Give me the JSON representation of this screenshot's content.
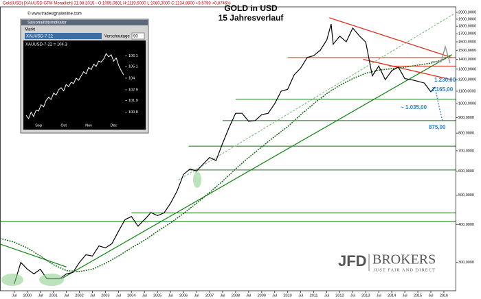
{
  "header": {
    "text": "Gold(USD) [XAUUSD GTM Monatlich] 31.08.2015 - O:1095,0601 H:1119,5000 L:1080,3000 C:1134,8900 +9,5799 +0,8746%",
    "copyright": "© www.tradesignalonline.com"
  },
  "branding": {
    "name": "JFD",
    "name2": "BROKERS",
    "slogan": "JUST FAIR AND DIRECT"
  },
  "inset": {
    "window_title": "Saisonalitätsindikator",
    "market_label": "Markt",
    "market": "XAUUSD-7-22",
    "days_label": "Vorschautage",
    "days": "90",
    "legend": "XAUUSD-7-22 = 104.3"
  },
  "chart_data": [
    {
      "type": "line",
      "title": "GOLD in USD",
      "subtitle": "15 Jahresverlauf",
      "log_scale": true,
      "color": "#000000",
      "x": [
        1999.5,
        1999.75,
        2000,
        2000.25,
        2000.5,
        2000.75,
        2001,
        2001.25,
        2001.5,
        2001.75,
        2002,
        2002.25,
        2002.5,
        2002.75,
        2003,
        2003.25,
        2003.5,
        2003.75,
        2004,
        2004.25,
        2004.5,
        2004.75,
        2005,
        2005.25,
        2005.5,
        2005.75,
        2006,
        2006.25,
        2006.5,
        2006.75,
        2007,
        2007.25,
        2007.5,
        2007.75,
        2008,
        2008.25,
        2008.5,
        2008.75,
        2009,
        2009.25,
        2009.5,
        2009.75,
        2010,
        2010.25,
        2010.5,
        2010.75,
        2011,
        2011.25,
        2011.5,
        2011.67,
        2011.75,
        2012,
        2012.25,
        2012.5,
        2012.75,
        2013,
        2013.25,
        2013.5,
        2013.75,
        2014,
        2014.25,
        2014.5,
        2014.75,
        2015,
        2015.25,
        2015.5,
        2015.67
      ],
      "values": [
        255,
        300,
        285,
        275,
        285,
        265,
        265,
        265,
        275,
        278,
        300,
        318,
        315,
        340,
        335,
        346,
        380,
        415,
        425,
        395,
        415,
        438,
        428,
        437,
        470,
        515,
        585,
        610,
        600,
        632,
        665,
        650,
        740,
        835,
        930,
        930,
        875,
        880,
        920,
        930,
        1000,
        1100,
        1115,
        1245,
        1310,
        1420,
        1440,
        1500,
        1620,
        1830,
        1570,
        1670,
        1600,
        1775,
        1675,
        1595,
        1235,
        1330,
        1200,
        1285,
        1320,
        1210,
        1200,
        1185,
        1170,
        1095,
        1135
      ],
      "moving_average": {
        "color": "#1a6e1a",
        "x": [
          1998.95,
          1999.5,
          2000,
          2000.5,
          2001,
          2001.5,
          2002,
          2002.5,
          2003,
          2003.5,
          2004,
          2004.5,
          2005,
          2005.5,
          2006,
          2006.5,
          2007,
          2007.5,
          2008,
          2008.5,
          2009,
          2009.5,
          2010,
          2010.5,
          2011,
          2011.5,
          2012,
          2012.5,
          2013,
          2013.5,
          2014,
          2014.5,
          2015,
          2015.5,
          2016,
          2016.3
        ],
        "values": [
          360,
          350,
          335,
          315,
          295,
          282,
          280,
          285,
          298,
          315,
          335,
          355,
          380,
          405,
          435,
          470,
          510,
          555,
          610,
          665,
          720,
          780,
          840,
          920,
          1000,
          1080,
          1150,
          1210,
          1260,
          1290,
          1305,
          1320,
          1340,
          1360,
          1400,
          1450
        ]
      },
      "hlines": [
        {
          "value": 1420,
          "x_from": 2010.0,
          "color": "#e03020"
        },
        {
          "value": 1330,
          "x_from": 2013.9,
          "color": "#e03020"
        },
        {
          "value": 1035,
          "x_from": 2008.0,
          "color": "#1a6e1a"
        },
        {
          "value": 880,
          "x_from": 2007.5,
          "color": "#1a6e1a"
        },
        {
          "value": 725,
          "x_from": 2006.2,
          "color": "#1a6e1a"
        },
        {
          "value": 605,
          "x_from": 2006.2,
          "color": "#1a6e1a"
        },
        {
          "value": 437,
          "x_from": 2004.0,
          "color": "#1a6e1a"
        },
        {
          "value": 410,
          "x_from": 1998.95,
          "color": "#1a6e1a"
        }
      ],
      "trendlines": [
        {
          "x": [
            2001.3,
            2016.3
          ],
          "y": [
            265,
            1450
          ],
          "color": "#1a8a1a",
          "dashed": false
        },
        {
          "x": [
            2005.8,
            2016.4
          ],
          "y": [
            560,
            1980
          ],
          "color": "#8cc08c",
          "dashed": true
        },
        {
          "x": [
            2011.6,
            2016.3
          ],
          "y": [
            1920,
            1420
          ],
          "color": "#e03020",
          "dashed": false
        },
        {
          "x": [
            2012.9,
            2016.3
          ],
          "y": [
            1400,
            1200
          ],
          "color": "#e03020",
          "dashed": false
        },
        {
          "x": [
            1998.95,
            2001.5
          ],
          "y": [
            345,
            290
          ],
          "color": "#1a8a1a",
          "dashed": false
        }
      ],
      "forecast": {
        "color": "#2a7fd0",
        "x": [
          2015.67,
          2015.75,
          2015.85,
          2015.95
        ],
        "values": [
          1135,
          1040,
          950,
          875
        ]
      },
      "annotations": [
        "1.230,00",
        "1.165,00",
        "~ 1.035,00",
        "875,00"
      ],
      "xlim": [
        1998.95,
        2016.45
      ],
      "ylim": [
        242,
        2085
      ],
      "xticks": [
        {
          "value": 1999.5,
          "label": "Jul"
        },
        2000,
        {
          "value": 2000.5,
          "label": "Jul"
        },
        2001,
        {
          "value": 2001.5,
          "label": "Jul"
        },
        2002,
        {
          "value": 2002.5,
          "label": "Jul"
        },
        2003,
        {
          "value": 2003.5,
          "label": "Jul"
        },
        2004,
        {
          "value": 2004.5,
          "label": "Jul"
        },
        2005,
        {
          "value": 2005.5,
          "label": "Jul"
        },
        2006,
        {
          "value": 2006.5,
          "label": "Jul"
        },
        2007,
        {
          "value": 2007.5,
          "label": "Jul"
        },
        2008,
        {
          "value": 2008.5,
          "label": "Jul"
        },
        2009,
        {
          "value": 2009.5,
          "label": "Jul"
        },
        2010,
        {
          "value": 2010.5,
          "label": "Jul"
        },
        2011,
        {
          "value": 2011.5,
          "label": "Jul"
        },
        2012,
        {
          "value": 2012.5,
          "label": "Jul"
        },
        2013,
        {
          "value": 2013.5,
          "label": "Jul"
        },
        2014,
        {
          "value": 2014.5,
          "label": "Jul"
        },
        2015,
        {
          "value": 2015.5,
          "label": "Jul"
        },
        2016
      ],
      "yticks": [
        {
          "value": 300,
          "label": "300,0000"
        },
        {
          "value": 400,
          "label": "400,0000"
        },
        {
          "value": 500,
          "label": "500,0000"
        },
        {
          "value": 600,
          "label": "600,0000"
        },
        {
          "value": 700,
          "label": "700,0000"
        },
        {
          "value": 800,
          "label": "800,0000"
        },
        {
          "value": 900,
          "label": "900,0000"
        },
        {
          "value": 1000,
          "label": "1000,0000"
        },
        {
          "value": 1100,
          "label": "1100,0000"
        },
        {
          "value": 1200,
          "label": "1200,0000"
        },
        {
          "value": 1300,
          "label": "1300,0000"
        },
        {
          "value": 1400,
          "label": "1400,0000"
        },
        {
          "value": 1500,
          "label": "1500,0000"
        },
        {
          "value": 1600,
          "label": "1600,0000"
        },
        {
          "value": 1700,
          "label": "1700,0000"
        },
        {
          "value": 1800,
          "label": "1800,0000"
        },
        {
          "value": 1900,
          "label": "1900,0000"
        },
        {
          "value": 2000,
          "label": "2000,0000"
        }
      ]
    },
    {
      "type": "line",
      "color": "#ffffff",
      "categories": [
        null,
        null,
        null,
        null,
        null,
        "Sep",
        null,
        null,
        null,
        null,
        null,
        null,
        null,
        null,
        null,
        "Oct",
        null,
        null,
        null,
        null,
        null,
        null,
        null,
        null,
        null,
        "Nov",
        null,
        null,
        null,
        null,
        null,
        null,
        null,
        null,
        null,
        "Dec",
        null,
        null,
        null,
        null
      ],
      "values": [
        100.5,
        100.2,
        100.8,
        100.4,
        101.0,
        100.9,
        101.5,
        101.3,
        101.9,
        102.2,
        102.0,
        102.6,
        102.4,
        102.9,
        103.1,
        102.8,
        103.4,
        103.2,
        103.6,
        103.5,
        104.0,
        103.8,
        104.2,
        104.6,
        104.4,
        105.0,
        104.8,
        105.3,
        105.1,
        105.6,
        105.5,
        105.8,
        106.3,
        106.0,
        106.2,
        105.6,
        105.9,
        105.2,
        104.7,
        104.3
      ],
      "ylim": [
        100.0,
        106.7
      ],
      "yticks": [
        100.8,
        101.9,
        102.9,
        104.0,
        105.1,
        106.1
      ]
    }
  ]
}
